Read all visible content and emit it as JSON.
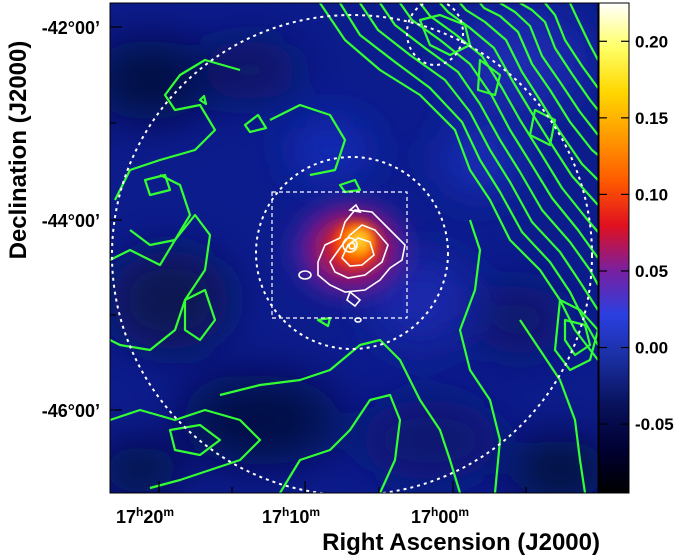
{
  "chart_data": {
    "type": "heatmap",
    "xlabel": "Right Ascension (J2000)",
    "ylabel": "Declination (J2000)",
    "x_ticks": [
      {
        "h": "17",
        "m": "20",
        "ra_min": 1040
      },
      {
        "h": "17",
        "m": "10",
        "ra_min": 1030
      },
      {
        "h": "17",
        "m": "00",
        "ra_min": 1020
      }
    ],
    "y_ticks": [
      {
        "label": "-42°00’",
        "dec": -42.0
      },
      {
        "label": "-44°00’",
        "dec": -44.0
      },
      {
        "label": "-46°00’",
        "dec": -46.0
      }
    ],
    "xlim_ra_min": [
      1046.3,
      1016.3
    ],
    "ylim_dec": [
      -46.85,
      -41.75
    ],
    "colorbar": {
      "ticks": [
        "0.20",
        "0.15",
        "0.10",
        "0.05",
        "0.00",
        "-0.05"
      ],
      "tick_values": [
        0.2,
        0.15,
        0.1,
        0.05,
        0.0,
        -0.05
      ],
      "range": [
        -0.095,
        0.225
      ],
      "colormap": [
        "#000000",
        "#000033",
        "#08125c",
        "#1a2ea0",
        "#2a3fe0",
        "#7a1fa0",
        "#e01020",
        "#ff5a00",
        "#ff9a00",
        "#ffd700",
        "#ffff66",
        "#ffffff"
      ]
    },
    "bright_source": {
      "ra_min": 1027.5,
      "dec": -44.3,
      "peak": 0.22
    },
    "overlays": {
      "dashed_circle_outer": {
        "center_ra_min": 1027.2,
        "center_dec": -44.4,
        "radius_deg": 2.5
      },
      "dashed_circle_inner": {
        "center_ra_min": 1027.2,
        "center_dec": -44.4,
        "radius_deg": 1.0
      },
      "dashed_box": {
        "ra_min": [
          1034.0,
          1020.8
        ],
        "dec": [
          -43.75,
          -45.0
        ]
      }
    },
    "colors": {
      "contour_green": "#33ff33",
      "contour_white": "#ffffff",
      "dashed_overlay": "#ffffff",
      "background_sky": "#0a1a8a"
    }
  }
}
